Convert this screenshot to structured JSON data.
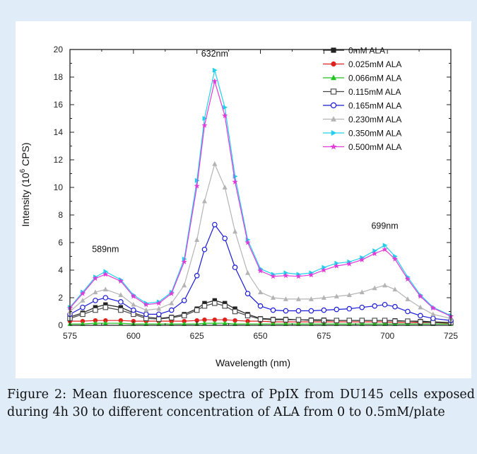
{
  "caption": "Figure 2: Mean fluorescence spectra of PpIX from DU145 cells exposed during 4h 30 to different concentration of ALA from 0 to 0.5mM/plate",
  "chart_data": {
    "type": "line",
    "xlabel": "Wavelength (nm)",
    "ylabel_main": "Intensity (10",
    "ylabel_sup": "6",
    "ylabel_tail": " CPS)",
    "xlim": [
      575,
      725
    ],
    "ylim": [
      0,
      20
    ],
    "xticks": [
      575,
      600,
      625,
      650,
      675,
      700,
      725
    ],
    "yticks": [
      0,
      2,
      4,
      6,
      8,
      10,
      12,
      14,
      16,
      18,
      20
    ],
    "grid": false,
    "legend_position": "top-right",
    "annotations": [
      {
        "text": "589nm",
        "x": 589,
        "y": 5.3
      },
      {
        "text": "632nm",
        "x": 632,
        "y": 19.5
      },
      {
        "text": "699nm",
        "x": 699,
        "y": 7.0
      }
    ],
    "x": [
      575,
      580,
      585,
      589,
      595,
      600,
      605,
      610,
      615,
      620,
      625,
      628,
      632,
      636,
      640,
      645,
      650,
      655,
      660,
      665,
      670,
      675,
      680,
      685,
      690,
      695,
      699,
      703,
      708,
      713,
      718,
      725
    ],
    "series": [
      {
        "name": "0mM ALA",
        "color": "#222222",
        "marker": "square-filled",
        "values": [
          0.6,
          0.9,
          1.3,
          1.5,
          1.3,
          0.9,
          0.6,
          0.5,
          0.6,
          0.8,
          1.2,
          1.6,
          1.8,
          1.6,
          1.2,
          0.8,
          0.5,
          0.45,
          0.45,
          0.4,
          0.4,
          0.4,
          0.35,
          0.35,
          0.35,
          0.35,
          0.35,
          0.35,
          0.3,
          0.3,
          0.25,
          0.2
        ]
      },
      {
        "name": "0.025mM ALA",
        "color": "#e0201c",
        "marker": "circle-filled",
        "values": [
          0.3,
          0.3,
          0.35,
          0.35,
          0.35,
          0.3,
          0.3,
          0.3,
          0.3,
          0.3,
          0.35,
          0.4,
          0.4,
          0.4,
          0.35,
          0.3,
          0.3,
          0.25,
          0.25,
          0.25,
          0.25,
          0.25,
          0.25,
          0.25,
          0.25,
          0.25,
          0.25,
          0.2,
          0.2,
          0.2,
          0.2,
          0.15
        ]
      },
      {
        "name": "0.066mM ALA",
        "color": "#22c422",
        "marker": "triangle-filled",
        "values": [
          0.1,
          0.1,
          0.15,
          0.15,
          0.15,
          0.1,
          0.1,
          0.1,
          0.1,
          0.1,
          0.1,
          0.15,
          0.15,
          0.15,
          0.1,
          0.1,
          0.1,
          0.1,
          0.1,
          0.1,
          0.1,
          0.1,
          0.1,
          0.1,
          0.1,
          0.1,
          0.1,
          0.1,
          0.1,
          0.1,
          0.1,
          0.1
        ]
      },
      {
        "name": "0.115mM ALA",
        "color": "#444444",
        "marker": "square-open",
        "values": [
          0.5,
          0.8,
          1.1,
          1.3,
          1.1,
          0.8,
          0.5,
          0.45,
          0.55,
          0.7,
          1.1,
          1.4,
          1.6,
          1.4,
          1.0,
          0.7,
          0.45,
          0.4,
          0.4,
          0.4,
          0.35,
          0.35,
          0.35,
          0.35,
          0.35,
          0.35,
          0.35,
          0.3,
          0.3,
          0.25,
          0.2,
          0.2
        ]
      },
      {
        "name": "0.165mM ALA",
        "color": "#1a1ad8",
        "marker": "circle-open",
        "values": [
          0.8,
          1.3,
          1.8,
          2.0,
          1.7,
          1.1,
          0.8,
          0.8,
          1.1,
          1.8,
          3.6,
          5.5,
          7.3,
          6.3,
          4.2,
          2.3,
          1.4,
          1.1,
          1.05,
          1.05,
          1.05,
          1.1,
          1.15,
          1.2,
          1.3,
          1.4,
          1.5,
          1.35,
          1.0,
          0.7,
          0.5,
          0.35
        ]
      },
      {
        "name": "0.230mM ALA",
        "color": "#b4b4b4",
        "marker": "triangle-filled",
        "values": [
          1.0,
          1.8,
          2.4,
          2.6,
          2.2,
          1.5,
          1.1,
          1.2,
          1.6,
          2.9,
          6.2,
          9.0,
          11.7,
          10.0,
          6.8,
          3.8,
          2.4,
          2.0,
          1.9,
          1.9,
          1.9,
          2.0,
          2.1,
          2.2,
          2.4,
          2.7,
          2.9,
          2.6,
          1.9,
          1.3,
          0.8,
          0.5
        ]
      },
      {
        "name": "0.350mM ALA",
        "color": "#22d0ec",
        "marker": "triangle-right",
        "values": [
          1.3,
          2.4,
          3.5,
          3.9,
          3.3,
          2.2,
          1.6,
          1.7,
          2.4,
          4.8,
          10.5,
          15.0,
          18.5,
          15.8,
          10.8,
          6.2,
          4.1,
          3.7,
          3.8,
          3.7,
          3.8,
          4.2,
          4.5,
          4.6,
          4.9,
          5.4,
          5.8,
          5.0,
          3.5,
          2.2,
          1.3,
          0.7
        ]
      },
      {
        "name": "0.500mM ALA",
        "color": "#e03ad8",
        "marker": "star",
        "values": [
          1.25,
          2.3,
          3.4,
          3.7,
          3.2,
          2.1,
          1.5,
          1.6,
          2.3,
          4.6,
          10.1,
          14.5,
          17.7,
          15.2,
          10.4,
          6.0,
          3.95,
          3.55,
          3.6,
          3.55,
          3.65,
          4.0,
          4.3,
          4.45,
          4.75,
          5.2,
          5.5,
          4.8,
          3.35,
          2.1,
          1.25,
          0.65
        ]
      }
    ]
  }
}
